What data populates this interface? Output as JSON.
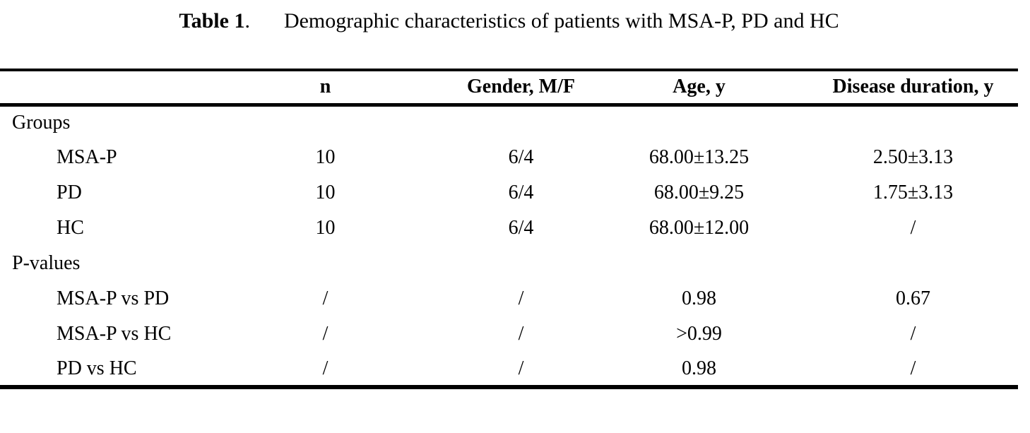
{
  "page": {
    "background_color": "#ffffff",
    "text_color": "#000000"
  },
  "title": {
    "label": "Table 1",
    "punct": ".",
    "text": "Demographic characteristics of patients with MSA-P, PD and HC"
  },
  "table": {
    "columns": [
      "",
      "n",
      "Gender, M/F",
      "Age, y",
      "Disease duration, y"
    ],
    "rows": [
      {
        "label": "Groups",
        "cells": [
          "",
          "",
          "",
          ""
        ]
      },
      {
        "label": "MSA-P",
        "cells": [
          "10",
          "6/4",
          "68.00±13.25",
          "2.50±3.13"
        ]
      },
      {
        "label": "PD",
        "cells": [
          "10",
          "6/4",
          "68.00±9.25",
          "1.75±3.13"
        ]
      },
      {
        "label": "HC",
        "cells": [
          "10",
          "6/4",
          "68.00±12.00",
          "/"
        ]
      },
      {
        "label": "P-values",
        "cells": [
          "",
          "",
          "",
          ""
        ]
      },
      {
        "label": "MSA-P vs PD",
        "cells": [
          "/",
          "/",
          "0.98",
          "0.67"
        ]
      },
      {
        "label": "MSA-P vs HC",
        "cells": [
          "/",
          "/",
          ">0.99",
          "/"
        ]
      },
      {
        "label": "PD vs HC",
        "cells": [
          "/",
          "/",
          "0.98",
          "/"
        ]
      }
    ]
  }
}
